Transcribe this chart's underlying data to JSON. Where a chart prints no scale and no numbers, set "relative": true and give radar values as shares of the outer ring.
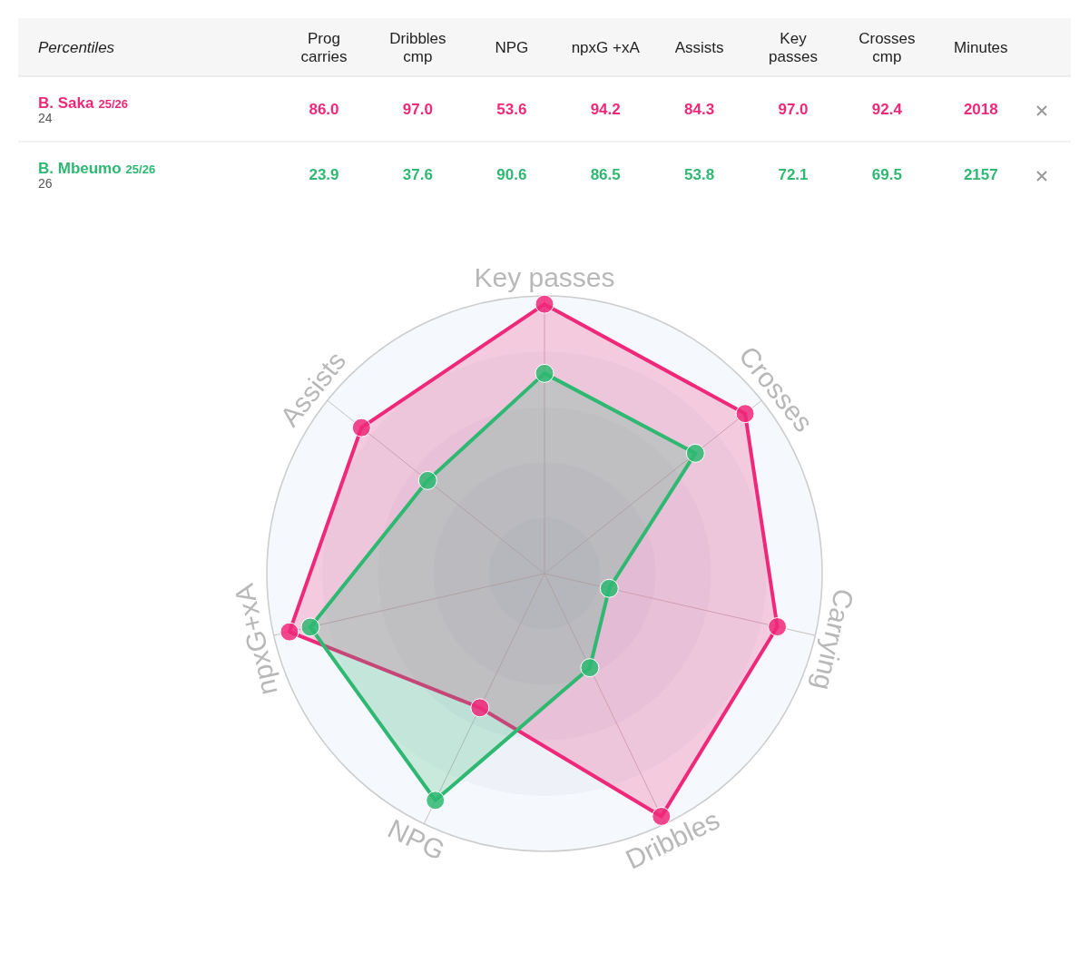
{
  "chart_data": [
    {
      "type": "other",
      "title": "Percentiles",
      "categories": [
        "Prog carries",
        "Dribbles cmp",
        "NPG",
        "npxG +xA",
        "Assists",
        "Key passes",
        "Crosses cmp",
        "Minutes"
      ],
      "series": [
        {
          "name": "B. Saka 25/26",
          "color": "#f0287a",
          "values": [
            86.0,
            97.0,
            53.6,
            94.2,
            84.3,
            97.0,
            92.4,
            2018
          ],
          "value_labels": [
            "86.0",
            "97.0",
            "53.6",
            "94.2",
            "84.3",
            "97.0",
            "92.4",
            "2018"
          ]
        },
        {
          "name": "B. Mbeumo 25/26",
          "color": "#2eb872",
          "values": [
            23.9,
            37.6,
            90.6,
            86.5,
            53.8,
            72.1,
            69.5,
            2157
          ],
          "value_labels": [
            "23.9",
            "37.6",
            "90.6",
            "86.5",
            "53.8",
            "72.1",
            "69.5",
            "2157"
          ]
        }
      ],
      "annotations": [
        "24",
        "26"
      ]
    },
    {
      "type": "radar",
      "categories": [
        "Key passes",
        "Crosses",
        "Carrying",
        "Dribbles",
        "NPG",
        "npxG+xA",
        "Assists"
      ],
      "series": [
        {
          "color": "#f0287a",
          "values": [
            0.97,
            0.924,
            0.86,
            0.97,
            0.536,
            0.942,
            0.843
          ]
        },
        {
          "color": "#2eb872",
          "values": [
            0.721,
            0.695,
            0.239,
            0.376,
            0.906,
            0.865,
            0.538
          ]
        }
      ],
      "relative": true,
      "grid": true,
      "marker": "circle"
    }
  ]
}
